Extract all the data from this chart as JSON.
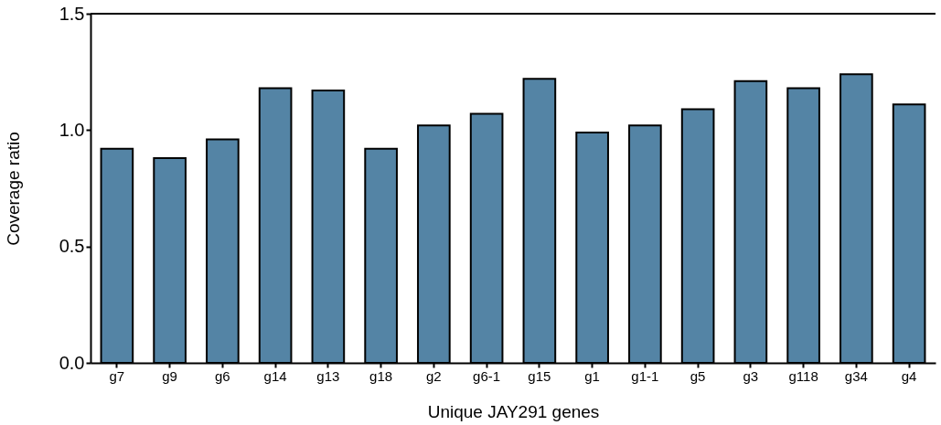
{
  "chart_data": {
    "type": "bar",
    "xlabel": "Unique JAY291 genes",
    "ylabel": "Coverage ratio",
    "categories": [
      "g7",
      "g9",
      "g6",
      "g14",
      "g13",
      "g18",
      "g2",
      "g6-1",
      "g15",
      "g1",
      "g1-1",
      "g5",
      "g3",
      "g118",
      "g34",
      "g4"
    ],
    "values": [
      0.92,
      0.88,
      0.96,
      1.18,
      1.17,
      0.92,
      1.02,
      1.07,
      1.22,
      0.99,
      1.02,
      1.09,
      1.21,
      1.18,
      1.24,
      1.11
    ],
    "color": "#5484a5",
    "ylim": [
      0,
      1.5
    ],
    "yticks": [
      {
        "value": 0,
        "label": "0.0"
      },
      0.5,
      {
        "value": 1,
        "label": "1.0"
      },
      1.5
    ],
    "grid": false
  }
}
